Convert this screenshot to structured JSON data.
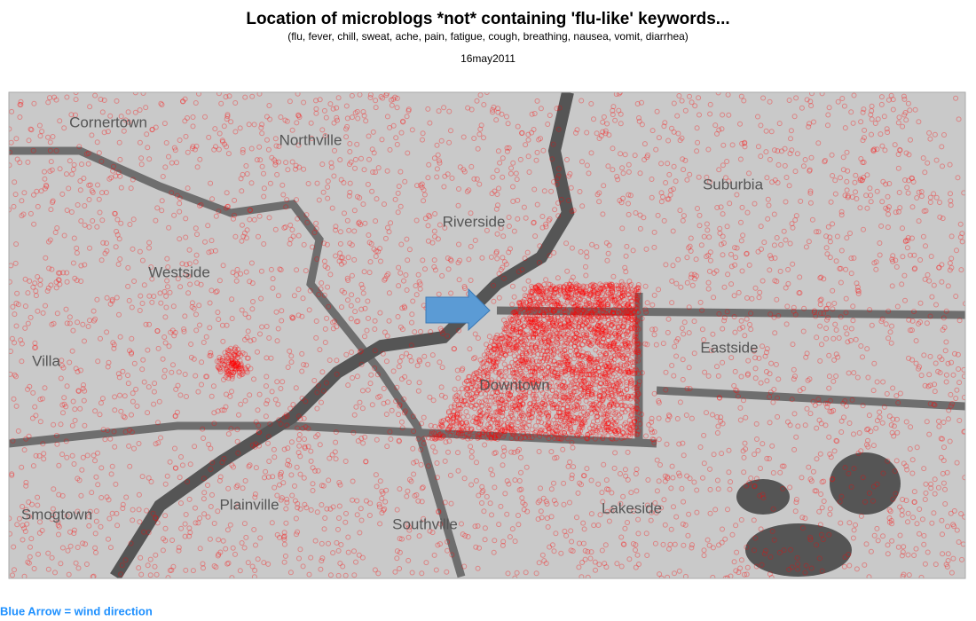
{
  "header": {
    "title": "Location of microblogs *not* containing 'flu-like' keywords...",
    "subtitle": "(flu, fever, chill, sweat, ache, pain, fatigue, cough, breathing, nausea, vomit, diarrhea)",
    "date": "16may2011"
  },
  "map": {
    "labels": [
      "Cornertown",
      "Northville",
      "Riverside",
      "Suburbia",
      "Westside",
      "Eastside",
      "Villa",
      "Downtown",
      "Plainville",
      "Lakeside",
      "Smogtown",
      "Southville"
    ]
  },
  "footnote": "Blue Arrow = wind direction"
}
